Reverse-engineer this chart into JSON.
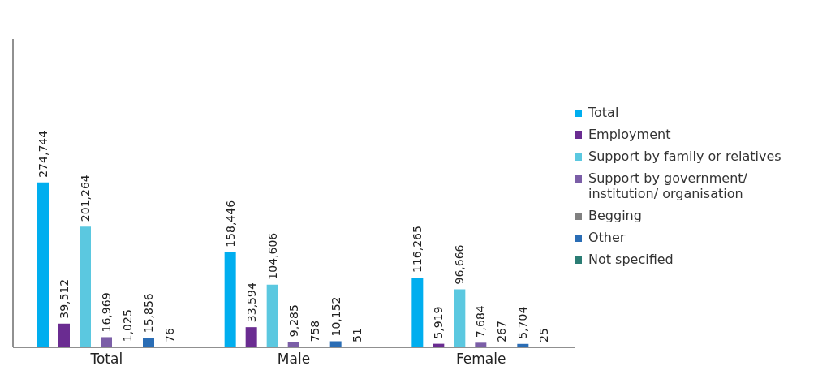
{
  "chart_data": {
    "type": "bar",
    "categories": [
      "Total",
      "Male",
      "Female"
    ],
    "series": [
      {
        "name": "Total",
        "color": "#00aeef",
        "values": [
          274744,
          158446,
          116265
        ],
        "value_labels": [
          "274,744",
          "158,446",
          "116,265"
        ]
      },
      {
        "name": "Employment",
        "color": "#6a2c91",
        "values": [
          39512,
          33594,
          5919
        ],
        "value_labels": [
          "39,512",
          "33,594",
          "5,919"
        ]
      },
      {
        "name": "Support by family or relatives",
        "color": "#5bc8e0",
        "values": [
          201264,
          104606,
          96666
        ],
        "value_labels": [
          "201,264",
          "104,606",
          "96,666"
        ]
      },
      {
        "name": "Support by government/ institution/ organisation",
        "color": "#7b5ea7",
        "values": [
          16969,
          9285,
          7684
        ],
        "value_labels": [
          "16,969",
          "9,285",
          "7,684"
        ]
      },
      {
        "name": "Begging",
        "color": "#808080",
        "values": [
          1025,
          758,
          267
        ],
        "value_labels": [
          "1,025",
          "758",
          "267"
        ]
      },
      {
        "name": "Other",
        "color": "#2a6db5",
        "values": [
          15856,
          10152,
          5704
        ],
        "value_labels": [
          "15,856",
          "10,152",
          "5,704"
        ]
      },
      {
        "name": "Not specified",
        "color": "#2b7d74",
        "values": [
          76,
          51,
          25
        ],
        "value_labels": [
          "76",
          "51",
          "25"
        ]
      }
    ],
    "legend": "right"
  }
}
